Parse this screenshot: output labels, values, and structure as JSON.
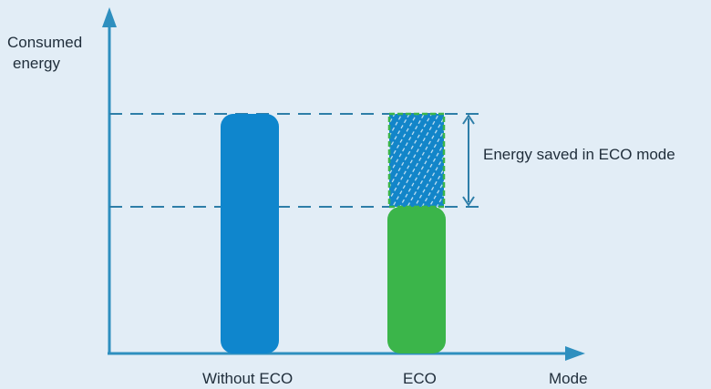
{
  "diagram": {
    "y_axis_label_line1": "Consumed",
    "y_axis_label_line2": "energy",
    "x_axis_label": "Mode",
    "categories": [
      "Without ECO",
      "ECO"
    ],
    "annotation": "Energy saved in ECO mode",
    "colors": {
      "background": "#e2edf6",
      "axis": "#2e8fbf",
      "without_eco_bar": "#0f86cd",
      "eco_bar": "#3bb54a",
      "saved_fill": "#1285c9",
      "saved_border": "#3bb54a",
      "guide_lines": "#2e7ea8"
    }
  }
}
